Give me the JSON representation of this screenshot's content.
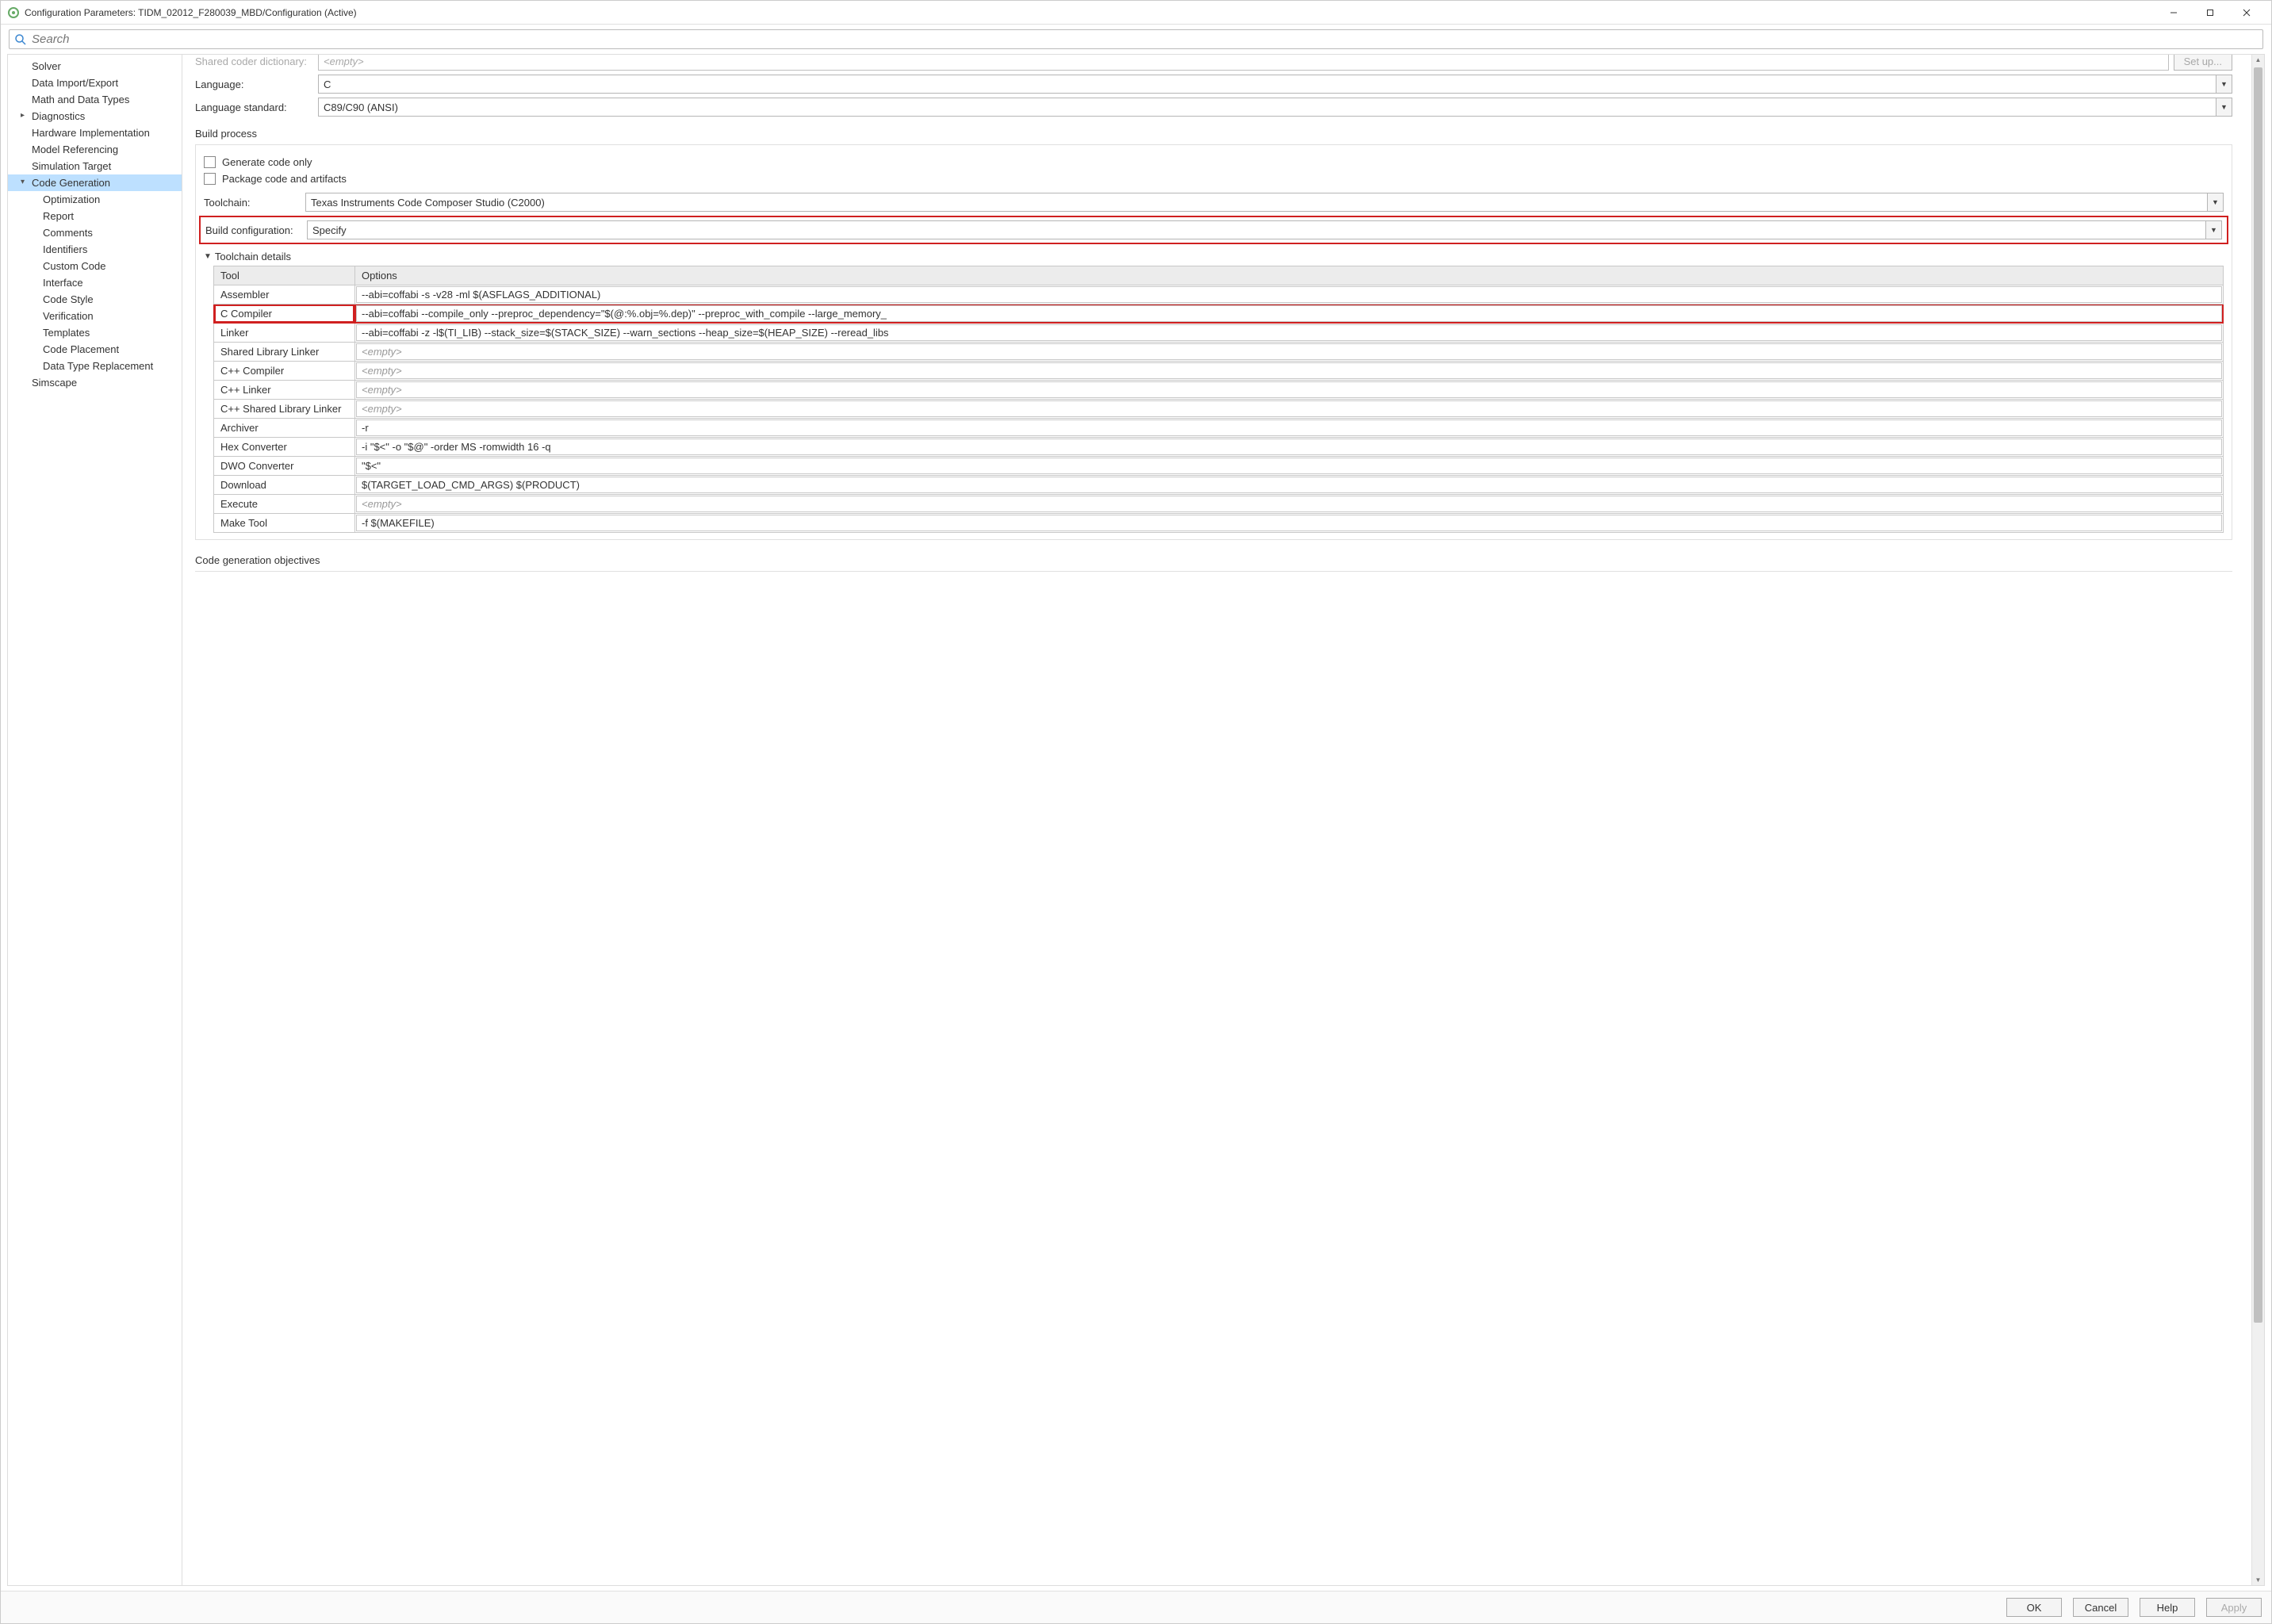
{
  "window": {
    "title": "Configuration Parameters: TIDM_02012_F280039_MBD/Configuration (Active)"
  },
  "search": {
    "placeholder": "Search"
  },
  "sidebar": {
    "items": [
      {
        "label": "Solver",
        "level": "top"
      },
      {
        "label": "Data Import/Export",
        "level": "top"
      },
      {
        "label": "Math and Data Types",
        "level": "top"
      },
      {
        "label": "Diagnostics",
        "level": "top",
        "caret": "▸"
      },
      {
        "label": "Hardware Implementation",
        "level": "top"
      },
      {
        "label": "Model Referencing",
        "level": "top"
      },
      {
        "label": "Simulation Target",
        "level": "top"
      },
      {
        "label": "Code Generation",
        "level": "top",
        "caret": "▾",
        "selected": true
      },
      {
        "label": "Optimization",
        "level": "child"
      },
      {
        "label": "Report",
        "level": "child"
      },
      {
        "label": "Comments",
        "level": "child"
      },
      {
        "label": "Identifiers",
        "level": "child"
      },
      {
        "label": "Custom Code",
        "level": "child"
      },
      {
        "label": "Interface",
        "level": "child"
      },
      {
        "label": "Code Style",
        "level": "child"
      },
      {
        "label": "Verification",
        "level": "child"
      },
      {
        "label": "Templates",
        "level": "child"
      },
      {
        "label": "Code Placement",
        "level": "child"
      },
      {
        "label": "Data Type Replacement",
        "level": "child"
      },
      {
        "label": "Simscape",
        "level": "top"
      }
    ]
  },
  "form": {
    "shared_coder_label": "Shared coder dictionary:",
    "shared_coder_value": "<empty>",
    "setup_btn": "Set up...",
    "language_label": "Language:",
    "language_value": "C",
    "langstd_label": "Language standard:",
    "langstd_value": "C89/C90 (ANSI)"
  },
  "build": {
    "section": "Build process",
    "gen_only": "Generate code only",
    "package": "Package code and artifacts",
    "toolchain_label": "Toolchain:",
    "toolchain_value": "Texas Instruments Code Composer Studio (C2000)",
    "buildcfg_label": "Build configuration:",
    "buildcfg_value": "Specify",
    "details_label": "Toolchain details",
    "table": {
      "col_tool": "Tool",
      "col_opts": "Options",
      "rows": [
        {
          "tool": "Assembler",
          "opts": "--abi=coffabi -s -v28 -ml $(ASFLAGS_ADDITIONAL)"
        },
        {
          "tool": "C Compiler",
          "opts": "--abi=coffabi --compile_only --preproc_dependency=\"$(@:%.obj=%.dep)\" --preproc_with_compile --large_memory_",
          "hl": true
        },
        {
          "tool": "Linker",
          "opts": "--abi=coffabi -z -l$(TI_LIB) --stack_size=$(STACK_SIZE) --warn_sections --heap_size=$(HEAP_SIZE) --reread_libs"
        },
        {
          "tool": "Shared Library Linker",
          "opts": "<empty>",
          "empty": true
        },
        {
          "tool": "C++ Compiler",
          "opts": "<empty>",
          "empty": true
        },
        {
          "tool": "C++ Linker",
          "opts": "<empty>",
          "empty": true
        },
        {
          "tool": "C++ Shared Library Linker",
          "opts": "<empty>",
          "empty": true
        },
        {
          "tool": "Archiver",
          "opts": "-r"
        },
        {
          "tool": "Hex Converter",
          "opts": "-i \"$<\" -o \"$@\" -order MS -romwidth 16 -q"
        },
        {
          "tool": "DWO Converter",
          "opts": "\"$<\""
        },
        {
          "tool": "Download",
          "opts": "$(TARGET_LOAD_CMD_ARGS) $(PRODUCT)"
        },
        {
          "tool": "Execute",
          "opts": "<empty>",
          "empty": true
        },
        {
          "tool": "Make Tool",
          "opts": "-f $(MAKEFILE)"
        }
      ]
    }
  },
  "objectives_section": "Code generation objectives",
  "footer": {
    "ok": "OK",
    "cancel": "Cancel",
    "help": "Help",
    "apply": "Apply"
  },
  "colors": {
    "highlight": "#d02020",
    "selection": "#bde0ff"
  }
}
